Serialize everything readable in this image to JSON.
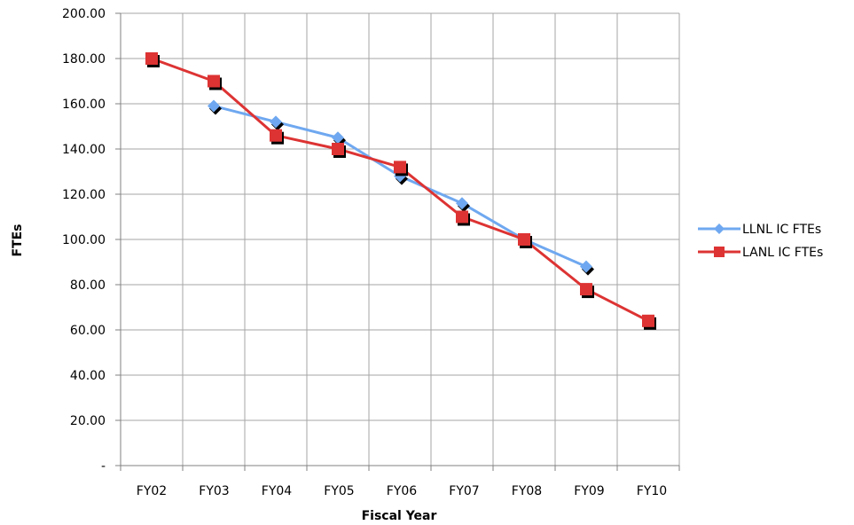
{
  "chart_data": {
    "type": "line",
    "title": "",
    "xlabel": "Fiscal Year",
    "ylabel": "FTEs",
    "categories": [
      "FY02",
      "FY03",
      "FY04",
      "FY05",
      "FY06",
      "FY07",
      "FY08",
      "FY09",
      "FY10"
    ],
    "ylim": [
      0,
      200
    ],
    "ytick_values": [
      0,
      20,
      40,
      60,
      80,
      100,
      120,
      140,
      160,
      180,
      200
    ],
    "ytick_labels": [
      "-",
      "20.00",
      "40.00",
      "60.00",
      "80.00",
      "100.00",
      "120.00",
      "140.00",
      "160.00",
      "180.00",
      "200.00"
    ],
    "grid": true,
    "legend_position": "right",
    "series": [
      {
        "name": "LLNL IC FTEs",
        "color": "#6fa8f0",
        "marker": "diamond",
        "values": [
          null,
          159,
          152,
          145,
          128,
          116,
          100,
          88,
          null
        ]
      },
      {
        "name": "LANL IC FTEs",
        "color": "#dd3333",
        "marker": "square",
        "values": [
          180,
          170,
          146,
          140,
          132,
          110,
          100,
          78,
          64
        ]
      }
    ]
  }
}
